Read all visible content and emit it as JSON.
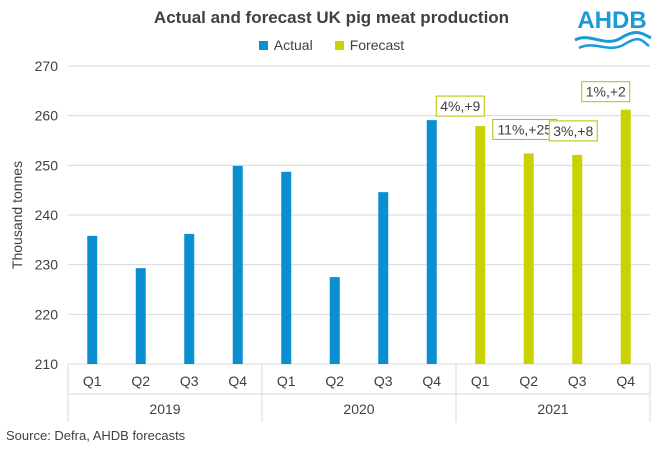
{
  "title": "Actual and forecast UK pig meat production",
  "logo_text": "AHDB",
  "source": "Source:  Defra, AHDB forecasts",
  "colors": {
    "actual": "#0A8FD1",
    "forecast": "#C8D200",
    "grid": "#D9D9D9",
    "text": "#404040",
    "label_border": "#B5BD00"
  },
  "chart_data": {
    "type": "bar",
    "title": "Actual and forecast UK pig meat production",
    "ylabel": "Thousand tonnes",
    "xlabel": "",
    "ylim": [
      210,
      270
    ],
    "yticks": [
      210,
      220,
      230,
      240,
      250,
      260,
      270
    ],
    "grid": "horizontal",
    "legend_position": "top",
    "categories": [
      "Q1",
      "Q2",
      "Q3",
      "Q4",
      "Q1",
      "Q2",
      "Q3",
      "Q4",
      "Q1",
      "Q2",
      "Q3",
      "Q4"
    ],
    "groups": [
      {
        "label": "2019",
        "count": 4
      },
      {
        "label": "2020",
        "count": 4
      },
      {
        "label": "2021",
        "count": 4
      }
    ],
    "series": [
      {
        "name": "Actual",
        "values": [
          235.8,
          229.3,
          236.2,
          249.9,
          248.7,
          227.5,
          244.6,
          259.1,
          null,
          null,
          null,
          null
        ]
      },
      {
        "name": "Forecast",
        "values": [
          null,
          null,
          null,
          null,
          null,
          null,
          null,
          null,
          257.9,
          252.4,
          252.1,
          261.2
        ]
      }
    ],
    "annotations": [
      {
        "index": 8,
        "text": "4%,+9"
      },
      {
        "index": 9,
        "text": "11%,+25"
      },
      {
        "index": 10,
        "text": "3%,+8"
      },
      {
        "index": 11,
        "text": "1%,+2"
      }
    ]
  }
}
